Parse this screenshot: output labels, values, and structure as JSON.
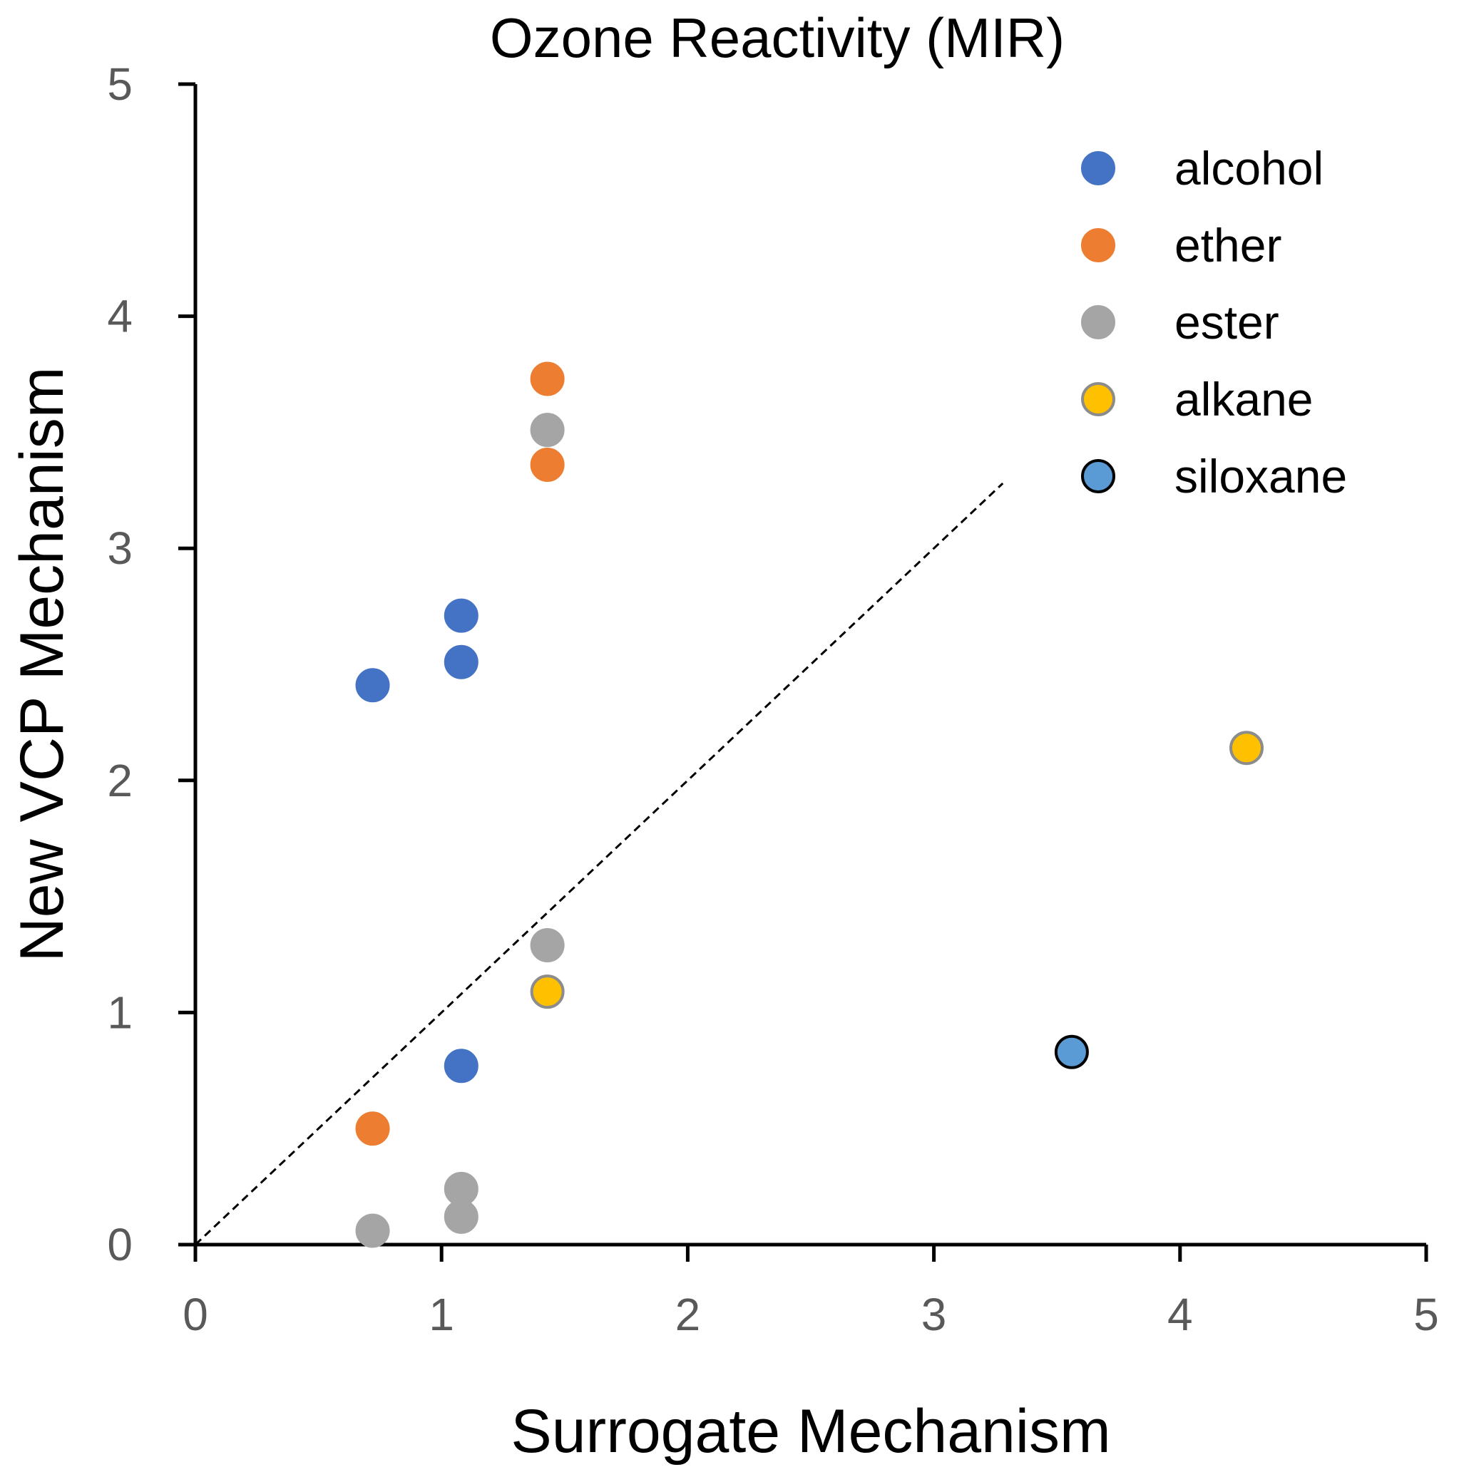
{
  "chart_data": {
    "type": "scatter",
    "title": "Ozone Reactivity (MIR)",
    "xlabel": "Surrogate Mechanism",
    "ylabel": "New VCP Mechanism",
    "xlim": [
      0,
      5
    ],
    "ylim": [
      0,
      5
    ],
    "xticks": [
      "0",
      "1",
      "2",
      "3",
      "4",
      "5"
    ],
    "yticks": [
      "0",
      "1",
      "2",
      "3",
      "4",
      "5"
    ],
    "grid": false,
    "legend_position": "top-right",
    "reference_line": {
      "style": "dashed",
      "color": "#000000",
      "x": [
        0,
        3.28
      ],
      "y": [
        0,
        3.28
      ]
    },
    "series": [
      {
        "name": "alcohol",
        "color": "#4472C4",
        "edge": "#4472C4",
        "points": [
          [
            0.72,
            2.41
          ],
          [
            1.08,
            2.71
          ],
          [
            1.08,
            2.51
          ],
          [
            1.08,
            0.77
          ]
        ]
      },
      {
        "name": "ether",
        "color": "#ED7D31",
        "edge": "#ED7D31",
        "points": [
          [
            1.43,
            3.73
          ],
          [
            1.43,
            3.36
          ],
          [
            0.72,
            0.5
          ]
        ]
      },
      {
        "name": "ester",
        "color": "#A5A5A5",
        "edge": "#A5A5A5",
        "points": [
          [
            1.43,
            3.51
          ],
          [
            1.43,
            1.29
          ],
          [
            1.08,
            0.24
          ],
          [
            1.08,
            0.12
          ],
          [
            0.72,
            0.06
          ]
        ]
      },
      {
        "name": "alkane",
        "color": "#FFC000",
        "edge": "#8C8C8C",
        "points": [
          [
            4.27,
            2.14
          ],
          [
            1.43,
            1.09
          ]
        ]
      },
      {
        "name": "siloxane",
        "color": "#5B9BD5",
        "edge": "#000000",
        "points": [
          [
            3.56,
            0.83
          ]
        ]
      }
    ]
  }
}
